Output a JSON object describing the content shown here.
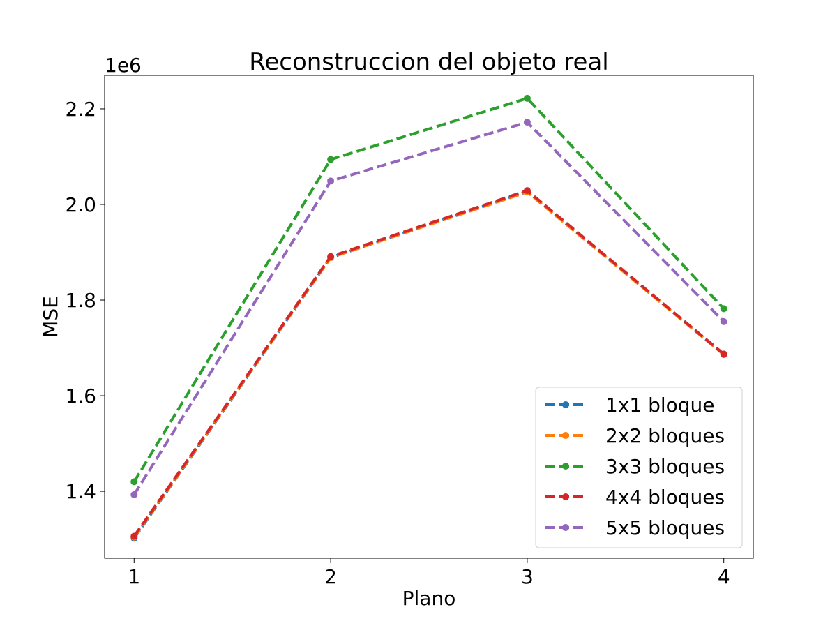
{
  "chart_data": {
    "type": "line",
    "title": "Reconstruccion del objeto real",
    "xlabel": "Plano",
    "ylabel": "MSE",
    "y_multiplier_label": "1e6",
    "x": [
      1,
      2,
      3,
      4
    ],
    "x_ticks": [
      "1",
      "2",
      "3",
      "4"
    ],
    "y_ticks": [
      1.4,
      1.6,
      1.8,
      2.0,
      2.2
    ],
    "y_tick_labels": [
      "1.4",
      "1.6",
      "1.8",
      "2.0",
      "2.2"
    ],
    "xlim": [
      0.85,
      4.15
    ],
    "ylim": [
      1.26,
      2.27
    ],
    "grid": false,
    "legend_position": "lower right",
    "line_style": "dashed",
    "marker": "circle",
    "series": [
      {
        "name": "1x1 bloque",
        "color": "#1f77b4",
        "values": [
          1.302,
          1.889,
          2.027,
          1.687
        ]
      },
      {
        "name": "2x2 bloques",
        "color": "#ff7f0e",
        "values": [
          1.304,
          1.889,
          2.026,
          1.686
        ]
      },
      {
        "name": "3x3 bloques",
        "color": "#2ca02c",
        "values": [
          1.42,
          2.094,
          2.222,
          1.782
        ]
      },
      {
        "name": "4x4 bloques",
        "color": "#d62728",
        "values": [
          1.306,
          1.891,
          2.029,
          1.687
        ]
      },
      {
        "name": "5x5 bloques",
        "color": "#9467bd",
        "values": [
          1.393,
          2.049,
          2.172,
          1.755
        ]
      }
    ]
  }
}
